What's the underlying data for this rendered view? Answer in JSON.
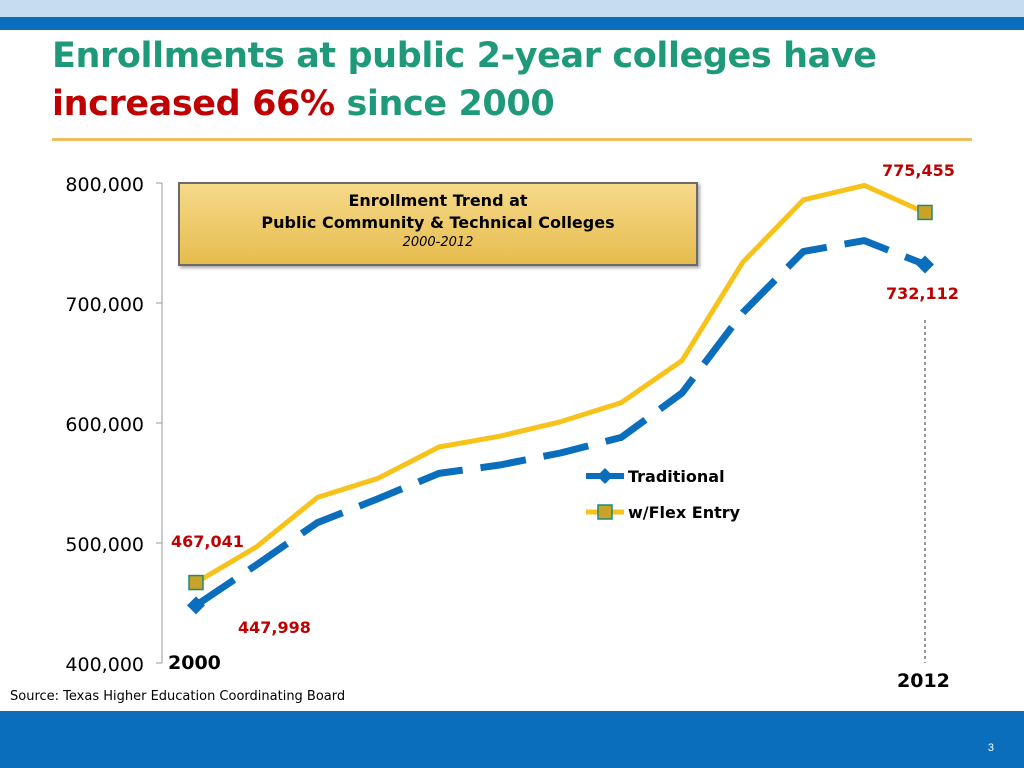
{
  "slide": {
    "title_part1": "Enrollments at public 2-year colleges have",
    "title_accent": "increased 66%",
    "title_part2": " since 2000",
    "source": "Source: Texas Higher Education Coordinating Board",
    "page_number": "3",
    "colors": {
      "title": "#1e9a7a",
      "accent": "#c00000",
      "band": "#0a6ebd"
    }
  },
  "chart_data": {
    "type": "line",
    "title_box": {
      "line1": "Enrollment Trend at",
      "line2": "Public Community & Technical Colleges",
      "line3": "2000-2012"
    },
    "x": [
      2000,
      2001,
      2002,
      2003,
      2004,
      2005,
      2006,
      2007,
      2008,
      2009,
      2010,
      2011,
      2012
    ],
    "x_labels": {
      "first": "2000",
      "last": "2012"
    },
    "ylim": [
      400000,
      800000
    ],
    "yticks": [
      "400,000",
      "500,000",
      "600,000",
      "700,000",
      "800,000"
    ],
    "ytick_values": [
      400000,
      500000,
      600000,
      700000,
      800000
    ],
    "series": [
      {
        "name": "Traditional",
        "color": "#0a6ebd",
        "dash": true,
        "marker": "diamond",
        "values": [
          447998,
          482000,
          517000,
          537000,
          558000,
          565000,
          575000,
          588000,
          625000,
          692000,
          743000,
          752000,
          732112
        ]
      },
      {
        "name": "w/Flex Entry",
        "color": "#f7c31b",
        "dash": false,
        "marker": "square",
        "values": [
          467041,
          497000,
          538000,
          554000,
          580000,
          589000,
          601000,
          617000,
          652000,
          734000,
          786000,
          798000,
          775455
        ]
      }
    ],
    "annotations": {
      "flex_start": "467,041",
      "trad_start": "447,998",
      "flex_end": "775,455",
      "trad_end": "732,112"
    },
    "grid": false,
    "legend_position": "right-middle"
  }
}
